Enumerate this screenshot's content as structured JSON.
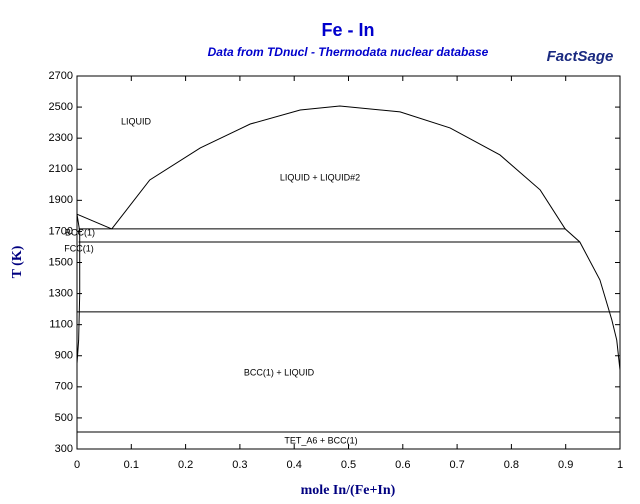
{
  "chart_data": {
    "type": "line",
    "title": "Fe - In",
    "subtitle": "Data from TDnucl - Thermodata nuclear database",
    "logo": "FactSage",
    "x_label": "mole In/(Fe+In)",
    "y_label": "T (K)",
    "xlim": [
      0,
      1
    ],
    "ylim": [
      300,
      2700
    ],
    "xticks": [
      0,
      0.1,
      0.2,
      0.3,
      0.4,
      0.5,
      0.6,
      0.7,
      0.8,
      0.9,
      1
    ],
    "yticks": [
      300,
      500,
      700,
      900,
      1100,
      1300,
      1500,
      1700,
      1900,
      2100,
      2300,
      2500,
      2700
    ],
    "annotations": [
      "LIQUID",
      "LIQUID + LIQUID#2",
      "BCC(1)",
      "FCC(1)",
      "BCC(1) + LIQUID",
      "TET_A6 + BCC(1)"
    ],
    "series": [
      {
        "color": "#000000",
        "x": [
          0.064,
          0.134,
          0.227,
          0.319,
          0.411,
          0.484,
          0.595,
          0.687,
          0.779,
          0.853,
          0.899,
          0.926,
          0.963,
          0.985,
          0.994,
          1.0
        ],
        "y": [
          1716,
          2031,
          2237,
          2391,
          2481,
          2507,
          2469,
          2366,
          2192,
          1967,
          1716,
          1632,
          1388,
          1130,
          1001,
          808
        ]
      },
      {
        "color": "#000000",
        "x": [
          0,
          0.064
        ],
        "y": [
          1811,
          1716
        ]
      },
      {
        "color": "#000000",
        "x": [
          0,
          0.005,
          0.005,
          0.003,
          0
        ],
        "y": [
          1811,
          1700,
          1300,
          1000,
          850
        ]
      },
      {
        "color": "#000000",
        "x": [
          0.003,
          0.9
        ],
        "y": [
          1716,
          1716
        ]
      },
      {
        "color": "#000000",
        "x": [
          0.003,
          0.926
        ],
        "y": [
          1632,
          1632
        ]
      },
      {
        "color": "#000000",
        "x": [
          0,
          1
        ],
        "y": [
          1182,
          1182
        ]
      },
      {
        "color": "#000000",
        "x": [
          0,
          1
        ],
        "y": [
          409,
          409
        ]
      },
      {
        "color": "#000000",
        "x": [
          1,
          1
        ],
        "y": [
          300,
          808
        ]
      }
    ]
  }
}
